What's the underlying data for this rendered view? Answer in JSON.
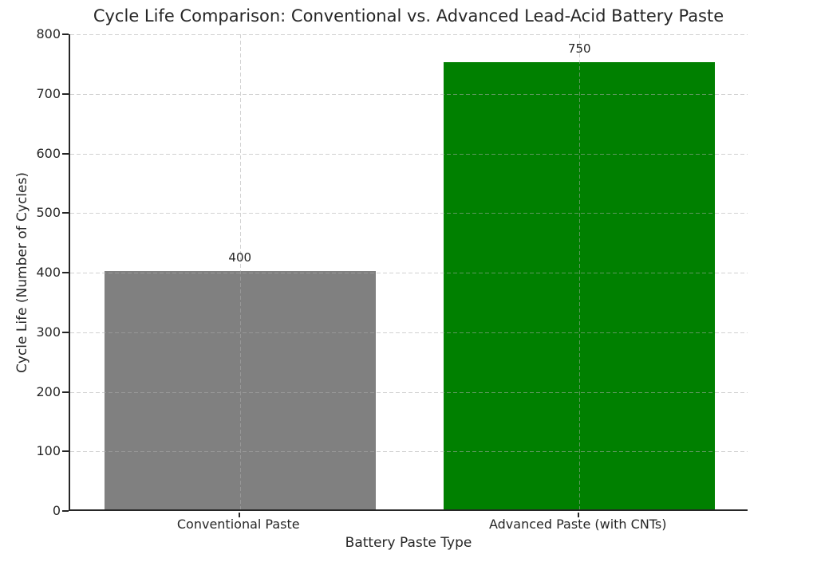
{
  "chart_data": {
    "type": "bar",
    "title": "Cycle Life Comparison: Conventional vs. Advanced Lead-Acid Battery Paste",
    "xlabel": "Battery Paste Type",
    "ylabel": "Cycle Life (Number of Cycles)",
    "categories": [
      "Conventional Paste",
      "Advanced Paste (with CNTs)"
    ],
    "values": [
      400,
      750
    ],
    "value_labels": [
      "400",
      "750"
    ],
    "bar_colors": [
      "#808080",
      "#008000"
    ],
    "ylim": [
      0,
      800
    ],
    "yticks": [
      0,
      100,
      200,
      300,
      400,
      500,
      600,
      700,
      800
    ],
    "ytick_labels": [
      "0",
      "100",
      "200",
      "300",
      "400",
      "500",
      "600",
      "700",
      "800"
    ],
    "grid": {
      "on": true,
      "style": "dashed",
      "color": "#acacac",
      "above_bars": true
    },
    "legend": null,
    "background_color": "#ffffff",
    "text_color": "#262626"
  }
}
